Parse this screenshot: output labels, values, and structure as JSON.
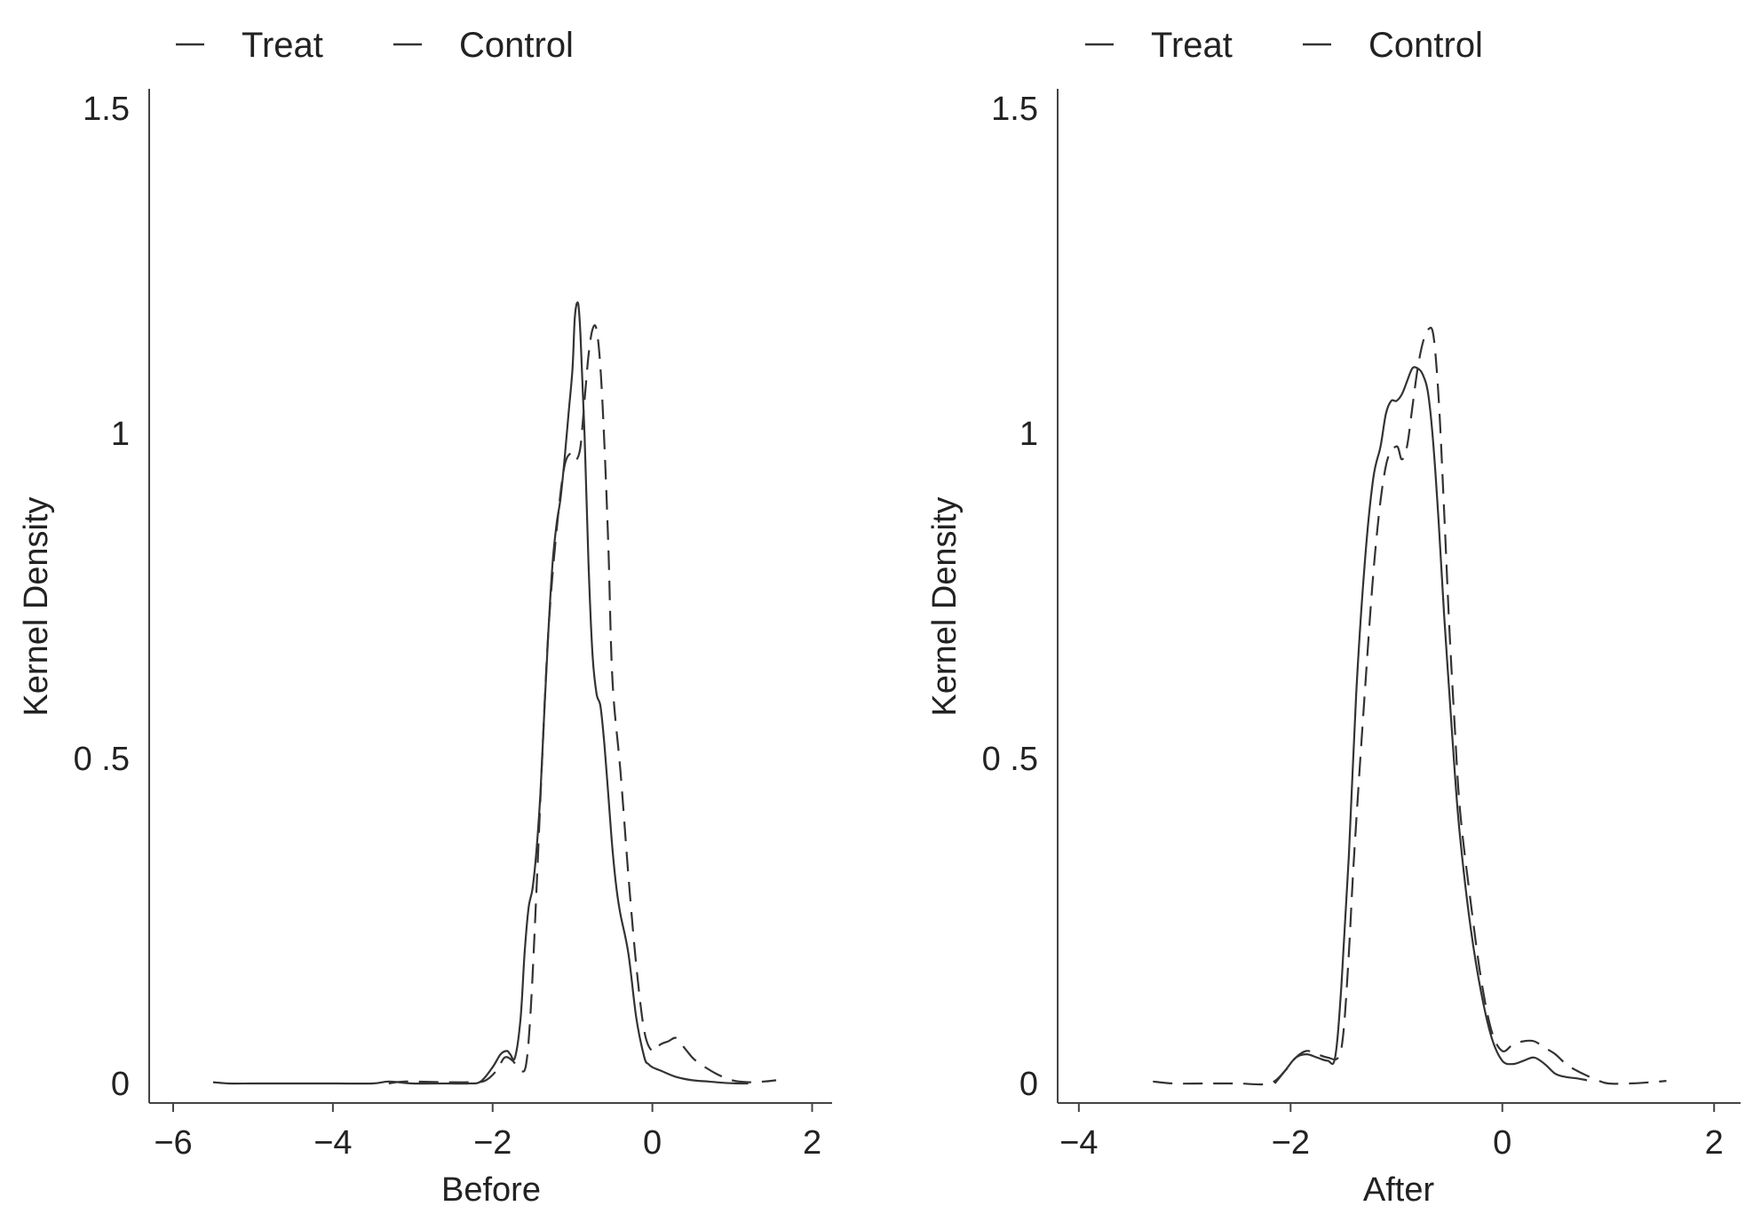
{
  "chart_data": [
    {
      "type": "line",
      "title": "",
      "xlabel": "Before",
      "ylabel": "Kernel Density",
      "xlim": [
        -6.3,
        2.25
      ],
      "ylim": [
        -0.03,
        1.53
      ],
      "xticks": [
        -6,
        -4,
        -2,
        0,
        2
      ],
      "xtick_labels": [
        "−6",
        "−4",
        "−2",
        "0",
        "2"
      ],
      "yticks": [
        0,
        0.5,
        1,
        1.5
      ],
      "ytick_labels": [
        "0",
        "0 .5",
        "1",
        "1.5"
      ],
      "grid": false,
      "legend_position": "top-left",
      "series": [
        {
          "name": "Treat",
          "style": "dashed",
          "x": [
            -3.3,
            -3.1,
            -2.6,
            -2.3,
            -2.1,
            -1.95,
            -1.85,
            -1.75,
            -1.65,
            -1.58,
            -1.52,
            -1.45,
            -1.38,
            -1.3,
            -1.2,
            -1.1,
            -1.0,
            -0.95,
            -0.9,
            -0.85,
            -0.8,
            -0.75,
            -0.7,
            -0.65,
            -0.6,
            -0.55,
            -0.5,
            -0.4,
            -0.3,
            -0.2,
            -0.1,
            0.0,
            0.1,
            0.2,
            0.3,
            0.4,
            0.5,
            0.6,
            0.8,
            1.0,
            1.2,
            1.4,
            1.55
          ],
          "y": [
            0.0,
            0.003,
            0.002,
            0.002,
            0.004,
            0.02,
            0.04,
            0.035,
            0.02,
            0.03,
            0.12,
            0.3,
            0.5,
            0.7,
            0.85,
            0.95,
            0.97,
            0.96,
            0.98,
            1.05,
            1.12,
            1.16,
            1.16,
            1.1,
            0.98,
            0.82,
            0.62,
            0.48,
            0.32,
            0.18,
            0.08,
            0.05,
            0.06,
            0.065,
            0.07,
            0.055,
            0.04,
            0.03,
            0.015,
            0.005,
            0.002,
            0.003,
            0.005
          ]
        },
        {
          "name": "Control",
          "style": "solid",
          "x": [
            -5.5,
            -5.3,
            -5.0,
            -4.5,
            -4.0,
            -3.5,
            -3.3,
            -3.0,
            -2.6,
            -2.3,
            -2.15,
            -2.0,
            -1.9,
            -1.82,
            -1.78,
            -1.72,
            -1.65,
            -1.6,
            -1.55,
            -1.5,
            -1.45,
            -1.4,
            -1.35,
            -1.3,
            -1.25,
            -1.2,
            -1.15,
            -1.1,
            -1.05,
            -1.0,
            -0.97,
            -0.93,
            -0.9,
            -0.85,
            -0.8,
            -0.75,
            -0.7,
            -0.65,
            -0.6,
            -0.55,
            -0.5,
            -0.45,
            -0.4,
            -0.3,
            -0.2,
            -0.1,
            -0.05,
            0.0,
            0.1,
            0.3,
            0.5,
            0.7,
            0.9,
            1.1,
            1.2
          ],
          "y": [
            0.002,
            0.0,
            0.0,
            0.0,
            0.0,
            0.0,
            0.003,
            0.0,
            0.0,
            0.0,
            0.003,
            0.025,
            0.045,
            0.05,
            0.045,
            0.04,
            0.1,
            0.2,
            0.27,
            0.3,
            0.36,
            0.45,
            0.58,
            0.7,
            0.8,
            0.86,
            0.9,
            0.96,
            1.03,
            1.1,
            1.18,
            1.2,
            1.15,
            1.0,
            0.8,
            0.66,
            0.6,
            0.58,
            0.52,
            0.44,
            0.36,
            0.3,
            0.26,
            0.2,
            0.1,
            0.04,
            0.03,
            0.025,
            0.02,
            0.01,
            0.005,
            0.003,
            0.001,
            0.0,
            0.0
          ]
        }
      ]
    },
    {
      "type": "line",
      "title": "",
      "xlabel": "After",
      "ylabel": "Kernel Density",
      "xlim": [
        -4.2,
        2.25
      ],
      "ylim": [
        -0.03,
        1.53
      ],
      "xticks": [
        -4,
        -2,
        0,
        2
      ],
      "xtick_labels": [
        "−4",
        "−2",
        "0",
        "2"
      ],
      "yticks": [
        0,
        0.5,
        1,
        1.5
      ],
      "ytick_labels": [
        "0",
        "0 .5",
        "1",
        "1.5"
      ],
      "grid": false,
      "legend_position": "top-left",
      "series": [
        {
          "name": "Treat",
          "style": "dashed",
          "x": [
            -3.3,
            -3.1,
            -2.8,
            -2.5,
            -2.2,
            -2.05,
            -1.95,
            -1.85,
            -1.75,
            -1.65,
            -1.55,
            -1.5,
            -1.45,
            -1.4,
            -1.3,
            -1.2,
            -1.1,
            -1.0,
            -0.95,
            -0.9,
            -0.85,
            -0.8,
            -0.75,
            -0.7,
            -0.65,
            -0.6,
            -0.55,
            -0.5,
            -0.45,
            -0.4,
            -0.3,
            -0.2,
            -0.1,
            0.0,
            0.1,
            0.2,
            0.3,
            0.4,
            0.5,
            0.6,
            0.7,
            0.8,
            0.9,
            1.0,
            1.2,
            1.4,
            1.55
          ],
          "y": [
            0.003,
            0.0,
            0.0,
            0.0,
            0.0,
            0.02,
            0.04,
            0.05,
            0.045,
            0.04,
            0.04,
            0.08,
            0.2,
            0.35,
            0.6,
            0.82,
            0.95,
            0.98,
            0.96,
            0.98,
            1.04,
            1.1,
            1.14,
            1.16,
            1.15,
            1.05,
            0.88,
            0.7,
            0.55,
            0.42,
            0.28,
            0.16,
            0.08,
            0.05,
            0.06,
            0.065,
            0.065,
            0.055,
            0.045,
            0.03,
            0.02,
            0.012,
            0.005,
            0.0,
            0.0,
            0.002,
            0.004
          ]
        },
        {
          "name": "Control",
          "style": "solid",
          "x": [
            -2.15,
            -2.05,
            -1.95,
            -1.85,
            -1.75,
            -1.65,
            -1.58,
            -1.52,
            -1.45,
            -1.38,
            -1.3,
            -1.22,
            -1.15,
            -1.1,
            -1.05,
            -1.0,
            -0.95,
            -0.9,
            -0.85,
            -0.8,
            -0.75,
            -0.7,
            -0.65,
            -0.6,
            -0.55,
            -0.5,
            -0.45,
            -0.4,
            -0.3,
            -0.2,
            -0.1,
            0.0,
            0.1,
            0.2,
            0.3,
            0.4,
            0.5,
            0.6,
            0.7,
            0.8
          ],
          "y": [
            0.0,
            0.02,
            0.04,
            0.045,
            0.04,
            0.035,
            0.04,
            0.15,
            0.35,
            0.6,
            0.8,
            0.93,
            0.98,
            1.03,
            1.05,
            1.05,
            1.06,
            1.08,
            1.1,
            1.1,
            1.09,
            1.06,
            0.98,
            0.86,
            0.72,
            0.6,
            0.48,
            0.38,
            0.24,
            0.14,
            0.07,
            0.035,
            0.03,
            0.035,
            0.04,
            0.03,
            0.015,
            0.01,
            0.008,
            0.005
          ]
        }
      ]
    }
  ]
}
